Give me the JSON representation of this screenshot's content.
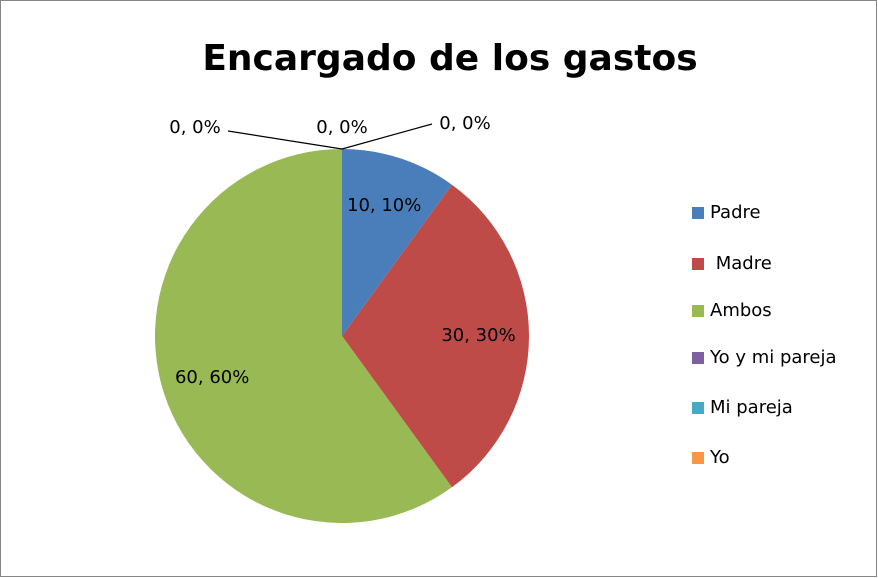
{
  "chart_data": {
    "type": "pie",
    "title": "Encargado de los gastos",
    "categories": [
      "Padre",
      " Madre",
      "Ambos",
      "Yo y mi pareja",
      "Mi pareja",
      "Yo"
    ],
    "values": [
      10,
      30,
      60,
      0,
      0,
      0
    ],
    "value_labels": [
      "10, 10%",
      "30, 30%",
      "60, 60%",
      "0, 0%",
      "0, 0%",
      "0, 0%"
    ],
    "colors": [
      "#4a7ebb",
      "#be4b48",
      "#98b954",
      "#7d60a0",
      "#46aac5",
      "#f79646"
    ],
    "legend": "right"
  }
}
